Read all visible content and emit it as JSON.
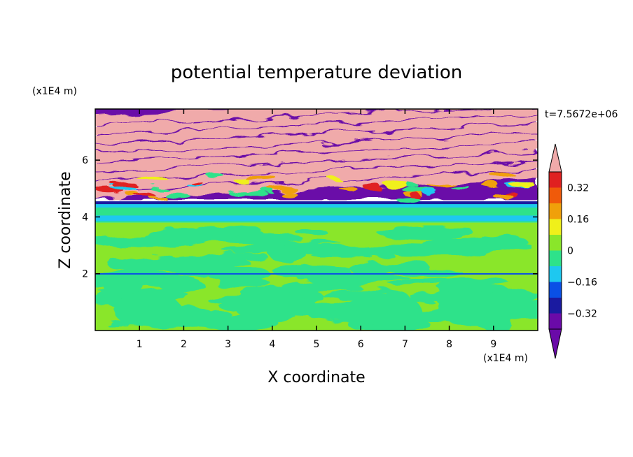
{
  "chart_data": {
    "type": "heatmap",
    "title": "potential temperature deviation",
    "xlabel": "X coordinate",
    "ylabel": "Z coordinate",
    "x_unit": "(x1E4 m)",
    "y_unit": "(x1E4 m)",
    "time_label": "t=7.5672e+06",
    "xlim": [
      0,
      10
    ],
    "ylim": [
      0,
      7.8
    ],
    "x_ticks": [
      "1",
      "2",
      "3",
      "4",
      "5",
      "6",
      "7",
      "8",
      "9"
    ],
    "y_ticks": [
      "2",
      "4",
      "6"
    ],
    "x_tick_values": [
      1,
      2,
      3,
      4,
      5,
      6,
      7,
      8,
      9
    ],
    "y_tick_values": [
      2,
      4,
      6
    ],
    "colorbar": {
      "levels": [
        -0.4,
        -0.32,
        -0.24,
        -0.16,
        -0.08,
        0,
        0.08,
        0.16,
        0.24,
        0.32,
        0.4
      ],
      "tick_labels": [
        "0.32",
        "0.16",
        "0",
        "−0.16",
        "−0.32"
      ],
      "tick_values": [
        0.32,
        0.16,
        0,
        -0.16,
        -0.32
      ],
      "colors": [
        "#6a0aa8",
        "#1a1aa0",
        "#0a50e6",
        "#1ec8f0",
        "#2ee28a",
        "#8ae62a",
        "#f0f01a",
        "#f0a00a",
        "#f05a0a",
        "#e02020",
        "#f0aaaa"
      ],
      "over_color": "#f0aaaa",
      "under_color": "#6a0aa8"
    },
    "layers": [
      {
        "z_range": [
          4.5,
          7.8
        ],
        "description_values": [
          -0.4,
          0.4
        ]
      },
      {
        "z_range": [
          3.8,
          4.5
        ],
        "description_values": [
          -0.16,
          0
        ]
      },
      {
        "z_range": [
          0,
          3.8
        ],
        "description_values": [
          0,
          0.08
        ]
      }
    ]
  }
}
